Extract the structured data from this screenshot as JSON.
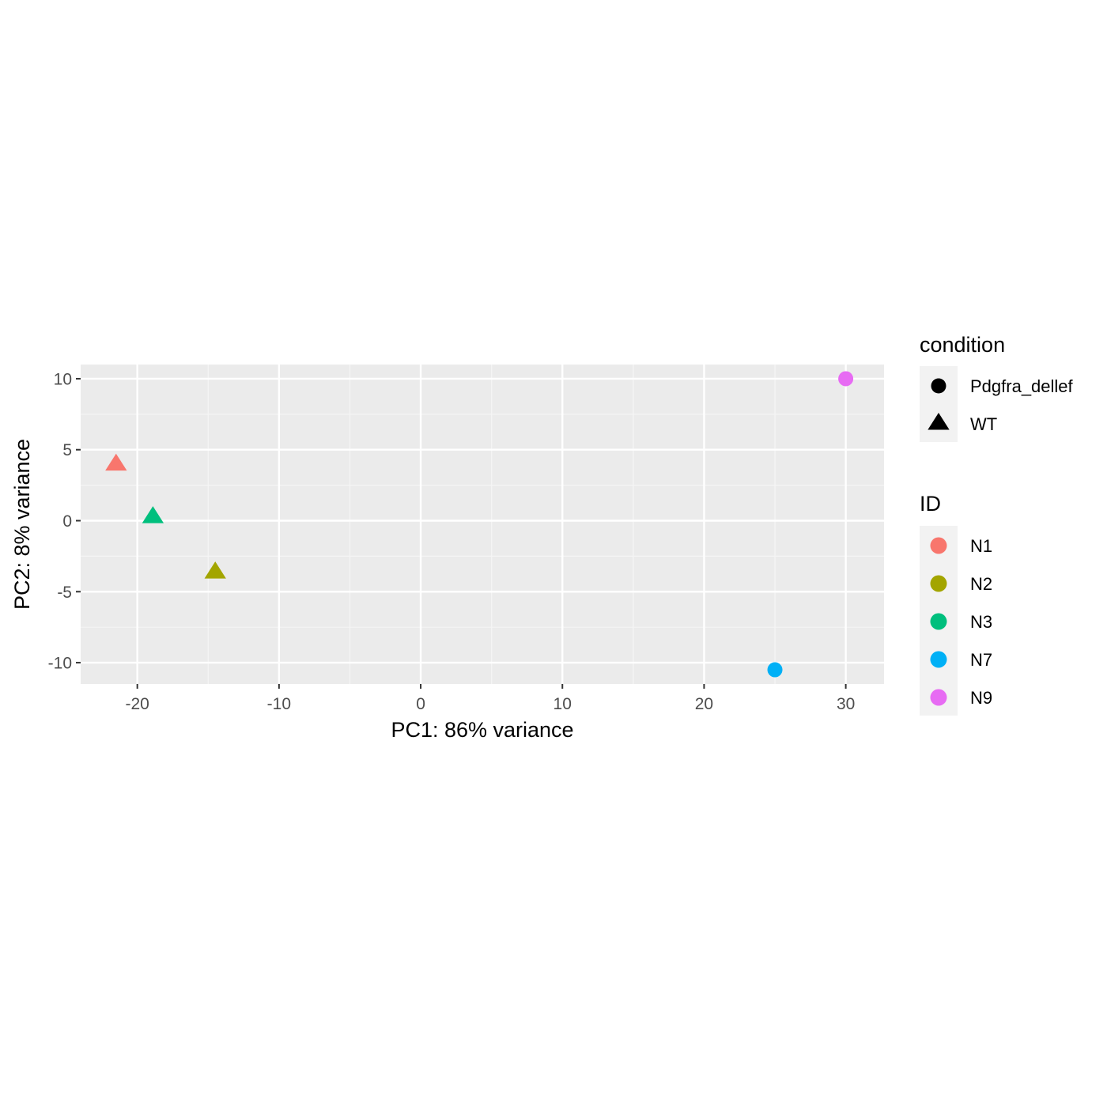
{
  "chart_data": {
    "type": "scatter",
    "xlabel": "PC1: 86% variance",
    "ylabel": "PC2: 8% variance",
    "xlim": [
      -24,
      32.7
    ],
    "ylim": [
      -11.5,
      11
    ],
    "x_ticks": [
      -20,
      -10,
      0,
      10,
      20,
      30
    ],
    "y_ticks": [
      10,
      5,
      0,
      -5,
      -10
    ],
    "x_tick_labels": [
      "-20",
      "-10",
      "0",
      "10",
      "20",
      "30"
    ],
    "y_tick_labels": [
      "10",
      "5",
      "0",
      "-5",
      "-10"
    ],
    "grid": true,
    "legend_position": "right",
    "points": [
      {
        "id": "N1",
        "condition": "WT",
        "x": -21.5,
        "y": 4.0
      },
      {
        "id": "N3",
        "condition": "WT",
        "x": -18.9,
        "y": 0.3
      },
      {
        "id": "N2",
        "condition": "WT",
        "x": -14.5,
        "y": -3.6
      },
      {
        "id": "N7",
        "condition": "Pdgfra_dellef",
        "x": 25.0,
        "y": -10.5
      },
      {
        "id": "N9",
        "condition": "Pdgfra_dellef",
        "x": 30.0,
        "y": 10.0
      }
    ],
    "legends": {
      "condition": {
        "title": "condition",
        "items": [
          {
            "label": "Pdgfra_dellef",
            "shape": "circle"
          },
          {
            "label": "WT",
            "shape": "triangle"
          }
        ]
      },
      "id": {
        "title": "ID",
        "items": [
          {
            "label": "N1",
            "color": "#F8766D"
          },
          {
            "label": "N2",
            "color": "#A3A500"
          },
          {
            "label": "N3",
            "color": "#00BF7D"
          },
          {
            "label": "N7",
            "color": "#00B0F6"
          },
          {
            "label": "N9",
            "color": "#E76BF3"
          }
        ]
      }
    }
  },
  "colors": {
    "panel_background": "#EBEBEB",
    "legend_key_background": "#F2F2F2",
    "grid_major": "#FFFFFF",
    "grid_minor": "#F5F5F5",
    "tick": "#333333"
  }
}
